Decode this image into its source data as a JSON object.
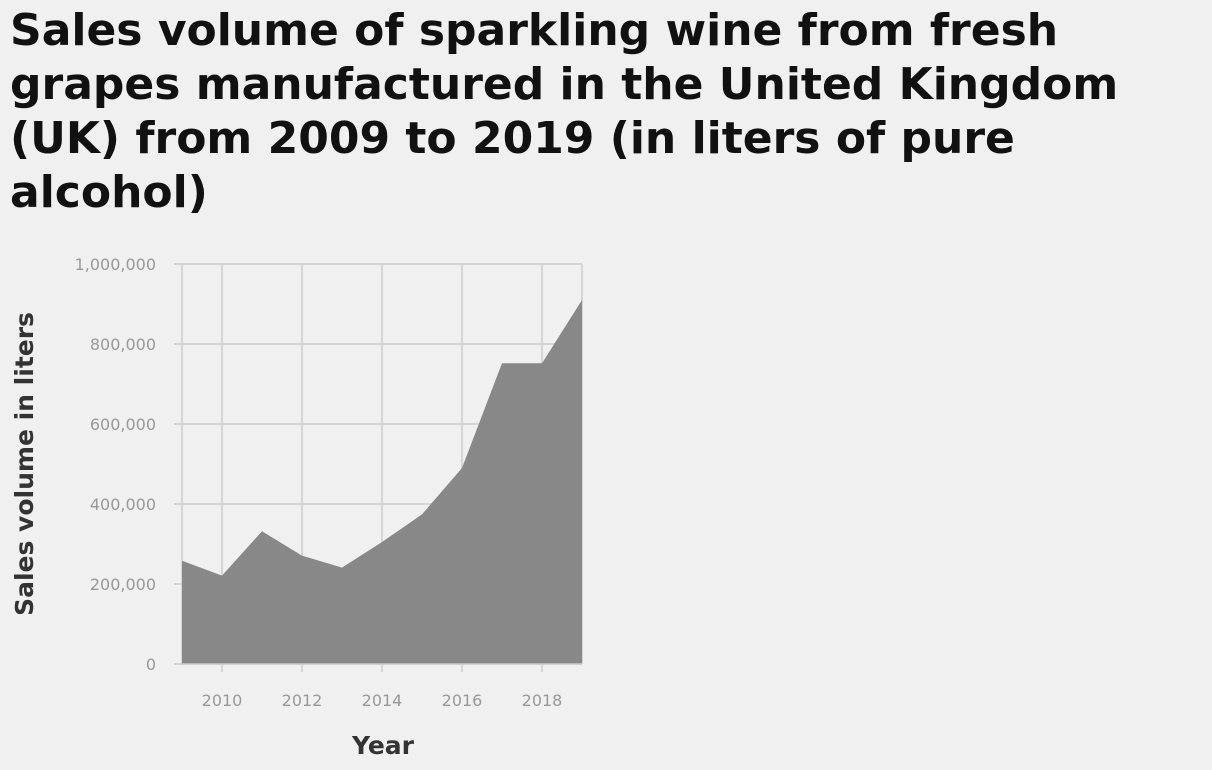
{
  "chart_data": {
    "type": "area",
    "title": "Sales volume of sparkling wine from fresh grapes manufactured in the United Kingdom (UK) from 2009 to 2019 (in liters of pure alcohol)",
    "xlabel": "Year",
    "ylabel": "Sales volume in liters",
    "x": [
      2009,
      2010,
      2011,
      2012,
      2013,
      2014,
      2015,
      2016,
      2017,
      2018,
      2019
    ],
    "values": [
      258000,
      221000,
      332000,
      271000,
      241000,
      305000,
      374000,
      490000,
      752000,
      752000,
      910000
    ],
    "xlim": [
      2009,
      2019
    ],
    "ylim": [
      0,
      1000000
    ],
    "x_ticks": [
      "2010",
      "2012",
      "2014",
      "2016",
      "2018"
    ],
    "y_ticks": [
      "0",
      "200,000",
      "400,000",
      "600,000",
      "800,000",
      "1,000,000"
    ],
    "grid": true,
    "fill_color": "#888888",
    "grid_color": "#cccccc"
  }
}
